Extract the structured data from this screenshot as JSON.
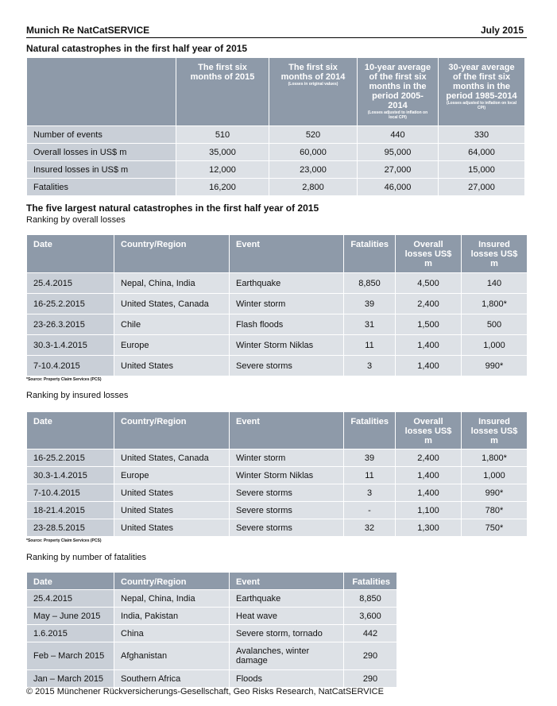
{
  "header": {
    "left": "Munich Re NatCatSERVICE",
    "right": "July 2015"
  },
  "summary": {
    "title": "Natural catastrophes in the first half year of 2015",
    "columns": [
      {
        "label": "The first six months of 2015",
        "note": ""
      },
      {
        "label": "The first six months of 2014",
        "note": "(Losses in original values)"
      },
      {
        "label": "10-year average of the first six months in the period 2005-2014",
        "note": "(Losses adjusted to inflation on local CPI)"
      },
      {
        "label": "30-year average of the first six months in the period 1985-2014",
        "note": "(Losses adjusted to inflation on local CPI)"
      }
    ],
    "rows": [
      [
        "Number of events",
        "510",
        "520",
        "440",
        "330"
      ],
      [
        "Overall losses in US$ m",
        "35,000",
        "60,000",
        "95,000",
        "64,000"
      ],
      [
        "Insured losses in US$ m",
        "12,000",
        "23,000",
        "27,000",
        "15,000"
      ],
      [
        "Fatalities",
        "16,200",
        "2,800",
        "46,000",
        "27,000"
      ]
    ]
  },
  "largest": {
    "title": "The five largest natural catastrophes in the first half year of 2015",
    "columns": [
      "Date",
      "Country/Region",
      "Event",
      "Fatalities",
      "Overall losses US$ m",
      "Insured losses US$ m"
    ],
    "overall": {
      "subtitle": "Ranking by overall losses",
      "rows": [
        [
          "25.4.2015",
          "Nepal, China, India",
          "Earthquake",
          "8,850",
          "4,500",
          "140"
        ],
        [
          "16-25.2.2015",
          "United States, Canada",
          "Winter storm",
          "39",
          "2,400",
          "1,800*"
        ],
        [
          "23-26.3.2015",
          "Chile",
          "Flash floods",
          "31",
          "1,500",
          "500"
        ],
        [
          "30.3-1.4.2015",
          "Europe",
          "Winter Storm Niklas",
          "11",
          "1,400",
          "1,000"
        ],
        [
          "7-10.4.2015",
          "United States",
          "Severe storms",
          "3",
          "1,400",
          "990*"
        ]
      ],
      "footnote": "*Source: Property Claim Services (PCS)"
    },
    "insured": {
      "subtitle": "Ranking by insured losses",
      "rows": [
        [
          "16-25.2.2015",
          "United States, Canada",
          "Winter storm",
          "39",
          "2,400",
          "1,800*"
        ],
        [
          "30.3-1.4.2015",
          "Europe",
          "Winter Storm Niklas",
          "11",
          "1,400",
          "1,000"
        ],
        [
          "7-10.4.2015",
          "United States",
          "Severe storms",
          "3",
          "1,400",
          "990*"
        ],
        [
          "18-21.4.2015",
          "United States",
          "Severe storms",
          "-",
          "1,100",
          "780*"
        ],
        [
          "23-28.5.2015",
          "United States",
          "Severe storms",
          "32",
          "1,300",
          "750*"
        ]
      ],
      "footnote": "*Source: Property Claim Services (PCS)"
    },
    "fatalities": {
      "subtitle": "Ranking by number of fatalities",
      "columns": [
        "Date",
        "Country/Region",
        "Event",
        "Fatalities"
      ],
      "rows": [
        [
          "25.4.2015",
          "Nepal, China, India",
          "Earthquake",
          "8,850"
        ],
        [
          "May – June 2015",
          "India, Pakistan",
          "Heat wave",
          "3,600"
        ],
        [
          "1.6.2015",
          "China",
          "Severe storm, tornado",
          "442"
        ],
        [
          "Feb – March 2015",
          "Afghanistan",
          "Avalanches, winter damage",
          "290"
        ],
        [
          "Jan – March 2015",
          "Southern Africa",
          "Floods",
          "290"
        ]
      ]
    }
  },
  "footer": "© 2015 Münchener Rückversicherungs-Gesellschaft, Geo Risks Research, NatCatSERVICE"
}
